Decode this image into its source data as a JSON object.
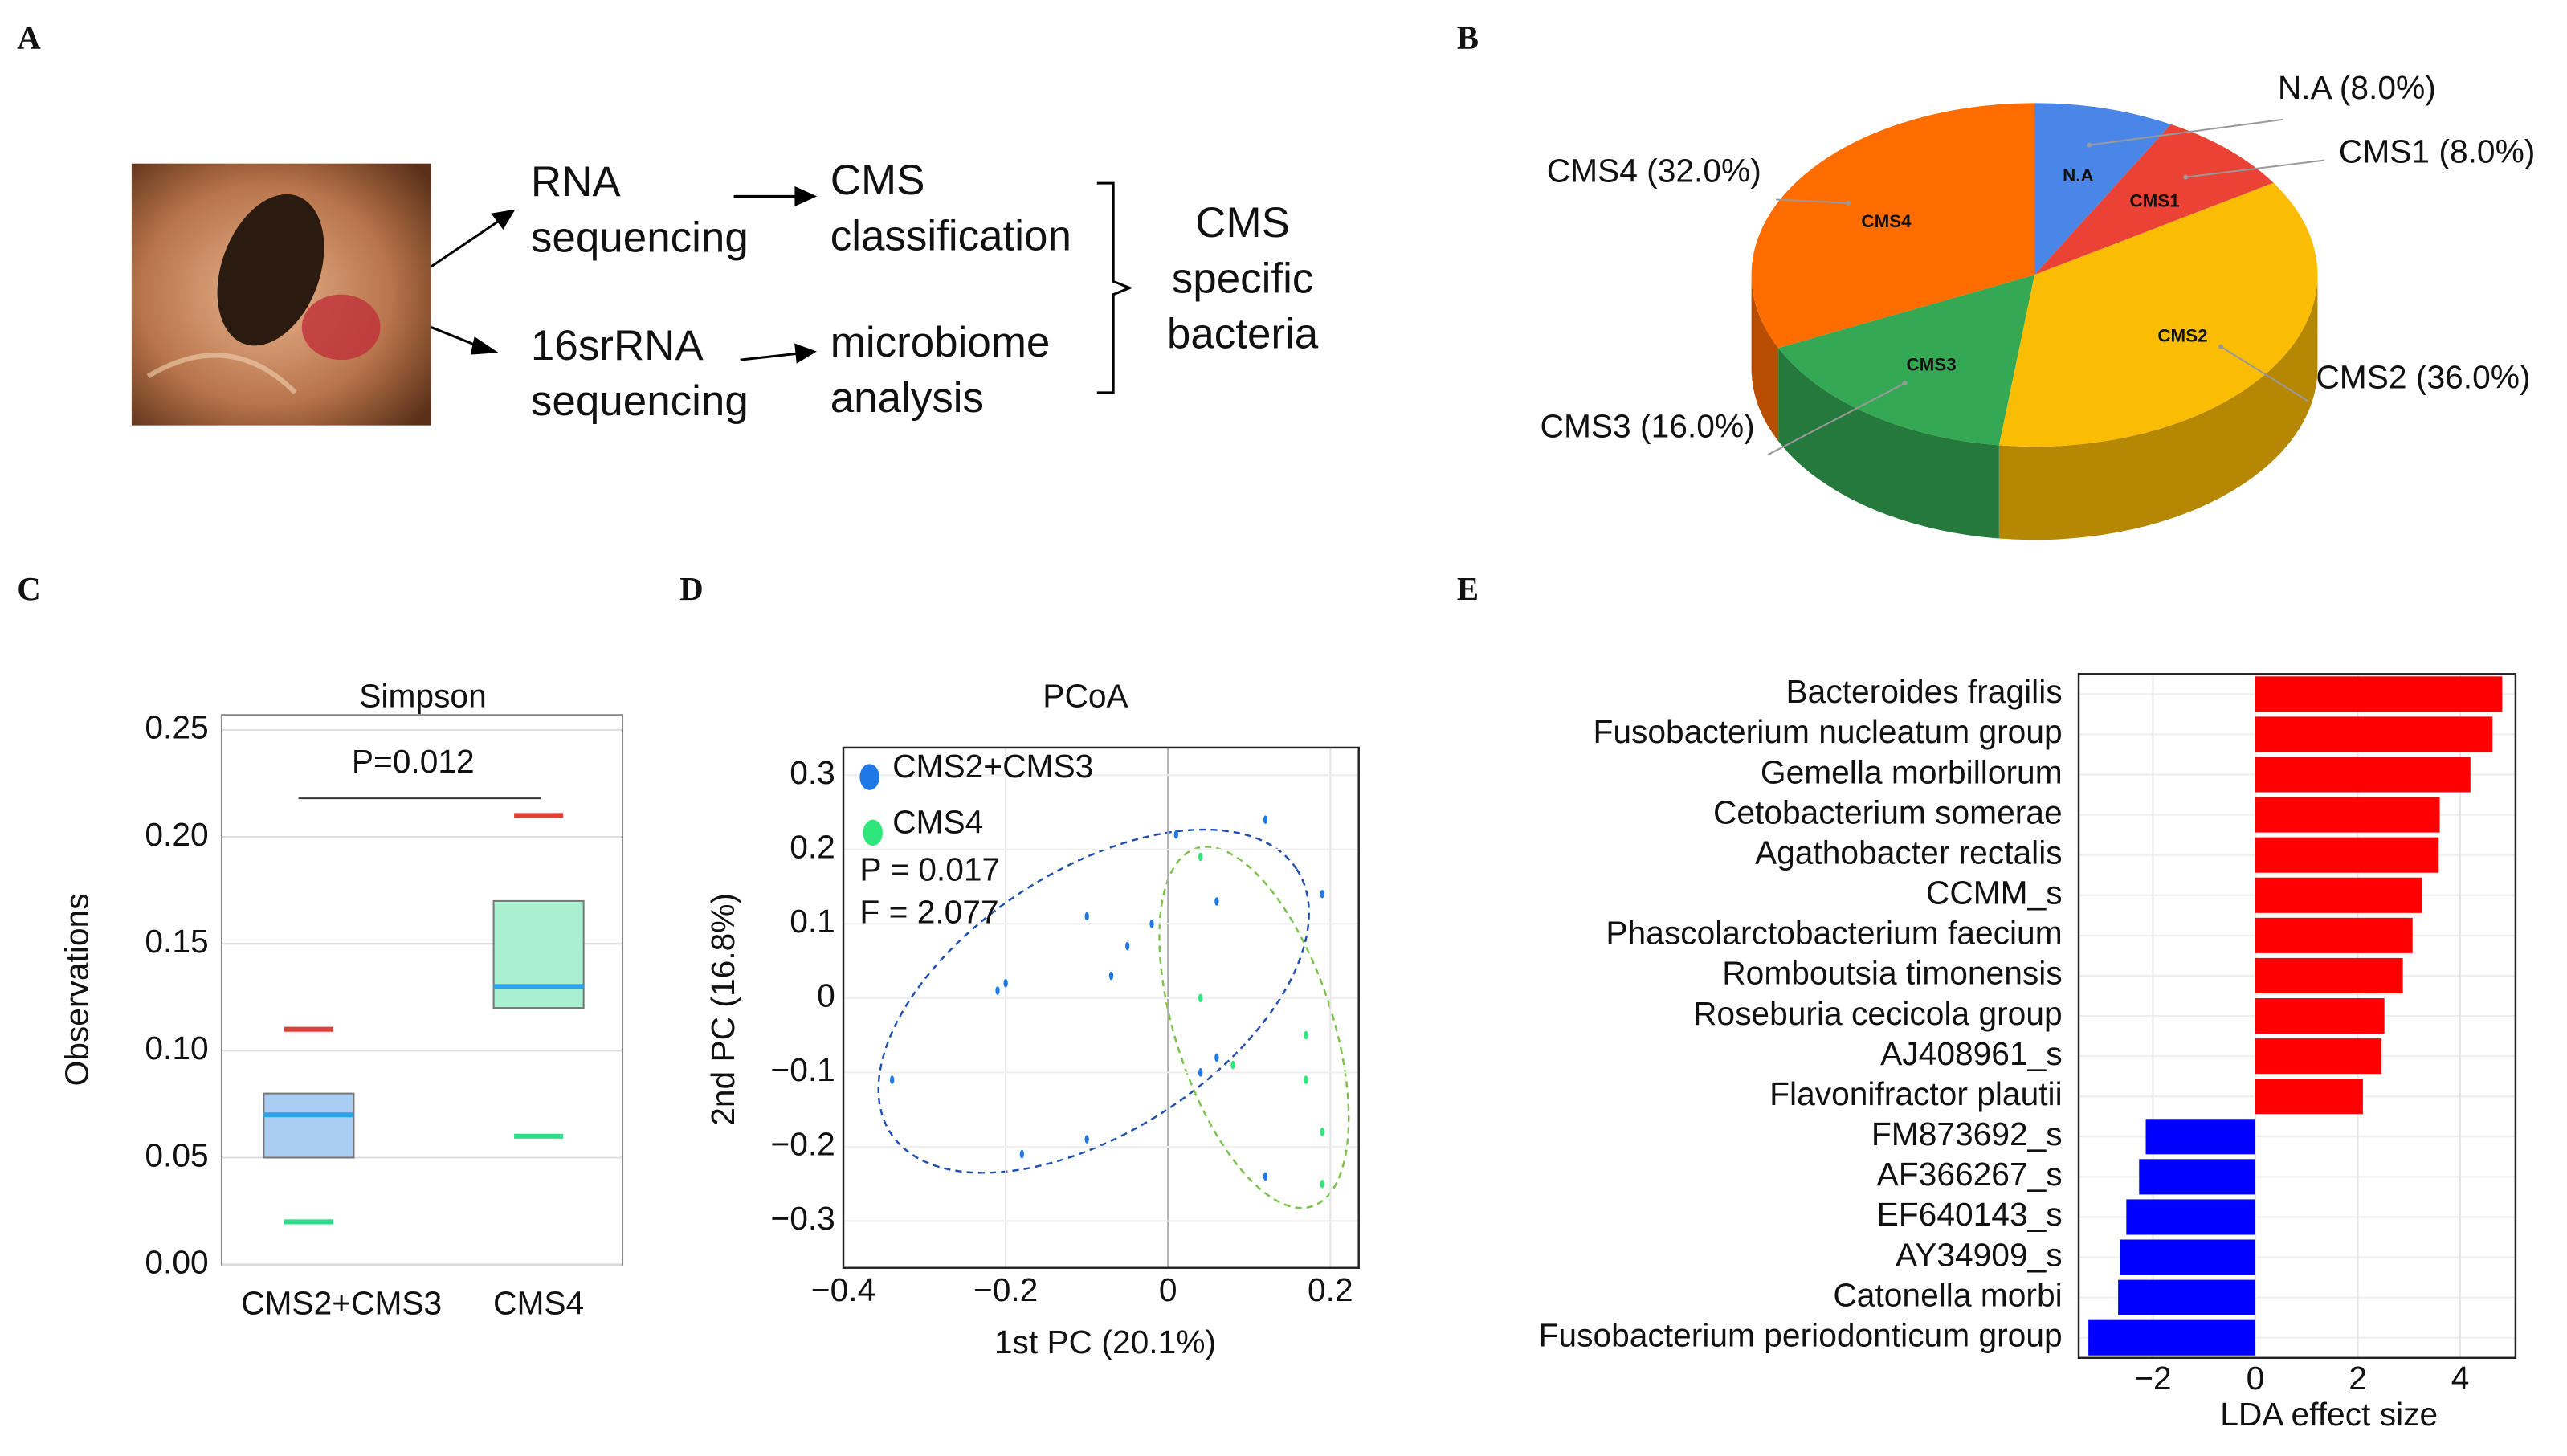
{
  "panels": [
    "A",
    "B",
    "C",
    "D",
    "E"
  ],
  "diagram": {
    "steps": [
      [
        "RNA",
        "sequencing"
      ],
      [
        "16srRNA",
        "sequencing"
      ]
    ],
    "results": [
      [
        "CMS",
        "classification"
      ],
      [
        "microbiome",
        "analysis"
      ]
    ],
    "outcome": [
      "CMS",
      "specific",
      "bacteria"
    ]
  },
  "chart_data": [
    {
      "type": "pie",
      "categories": [
        "N.A",
        "CMS1",
        "CMS2",
        "CMS3",
        "CMS4"
      ],
      "values": [
        8,
        8,
        36,
        16,
        32
      ],
      "value_labels": [
        "N.A (8.0%)",
        "CMS1 (8.0%)",
        "CMS2 (36.0%)",
        "CMS3 (16.0%)",
        "CMS4 (32.0%)"
      ],
      "colors": [
        "#4a86e8",
        "#ea4335",
        "#fbbc04",
        "#34a853",
        "#ff6d01"
      ]
    },
    {
      "type": "box",
      "title": "Simpson",
      "y_label": "Observations",
      "categories": [
        "CMS2+CMS3",
        "CMS4"
      ],
      "boxes": [
        {
          "min": 0.02,
          "q1": 0.05,
          "median": 0.07,
          "q3": 0.08,
          "max": 0.11
        },
        {
          "min": 0.06,
          "q1": 0.12,
          "median": 0.13,
          "q3": 0.17,
          "max": 0.21
        }
      ],
      "box_colors": [
        "#aacdf4",
        "#a8f0d0"
      ],
      "median_color": "#2ba4ea",
      "max_color": "#e0403a",
      "min_color": "#2fdc8a",
      "annotation": "P=0.012",
      "ylim": [
        0,
        0.257
      ],
      "yticks": [
        {
          "value": 0,
          "label": "0.00"
        },
        {
          "value": 0.05,
          "label": "0.05"
        },
        {
          "value": 0.1,
          "label": "0.10"
        },
        {
          "value": 0.15,
          "label": "0.15"
        },
        {
          "value": 0.2,
          "label": "0.20"
        },
        {
          "value": 0.25,
          "label": "0.25"
        }
      ],
      "grid": true
    },
    {
      "type": "scatter",
      "title": "PCoA",
      "x_label": "1st PC (20.1%)",
      "y_label": "2nd PC (16.8%)",
      "series": [
        {
          "name": "CMS2+CMS3",
          "color": "#1f78e6",
          "x": [
            0.12,
            0.01,
            0.19,
            0.06,
            -0.1,
            -0.02,
            -0.05,
            -0.07,
            -0.2,
            -0.21,
            0.04,
            0.06,
            -0.34,
            -0.1,
            -0.18,
            0.12
          ],
          "values": [
            0.24,
            0.22,
            0.14,
            0.13,
            0.11,
            0.1,
            0.07,
            0.03,
            0.02,
            0.01,
            -0.1,
            -0.08,
            -0.11,
            -0.19,
            -0.21,
            -0.24
          ]
        },
        {
          "name": "CMS4",
          "color": "#2ee67a",
          "x": [
            0.04,
            0.04,
            0.17,
            0.08,
            0.17,
            0.19,
            0.19
          ],
          "values": [
            0.19,
            0.0,
            -0.05,
            -0.09,
            -0.11,
            -0.18,
            -0.25
          ]
        }
      ],
      "annotations": [
        "P = 0.017",
        "F = 2.077"
      ],
      "xlim": [
        -0.4,
        0.235
      ],
      "ylim": [
        -0.363,
        0.337
      ],
      "xticks": [
        {
          "value": -0.4,
          "label": "−0.4"
        },
        {
          "value": -0.2,
          "label": "−0.2"
        },
        0,
        0.2
      ],
      "yticks": [
        0.3,
        0.2,
        0.1,
        0,
        {
          "value": -0.1,
          "label": "−0.1"
        },
        {
          "value": -0.2,
          "label": "−0.2"
        },
        {
          "value": -0.3,
          "label": "−0.3"
        }
      ],
      "grid": true
    },
    {
      "type": "bar",
      "orientation": "horizontal",
      "x_label": "LDA effect size",
      "categories": [
        "Bacteroides fragilis",
        "Fusobacterium nucleatum group",
        "Gemella morbillorum",
        "Cetobacterium somerae",
        "Agathobacter rectalis",
        "CCMM_s",
        "Phascolarctobacterium faecium",
        "Romboutsia timonensis",
        "Roseburia cecicola group",
        "AJ408961_s",
        "Flavonifractor plautii",
        "FM873692_s",
        "AF366267_s",
        "EF640143_s",
        "AY34909_s",
        "Catonella morbi",
        "Fusobacterium periodonticum group"
      ],
      "values": [
        4.82,
        4.63,
        4.2,
        3.6,
        3.58,
        3.26,
        3.07,
        2.88,
        2.52,
        2.46,
        2.1,
        -2.14,
        -2.27,
        -2.52,
        -2.65,
        -2.68,
        -3.26
      ],
      "positive_color": "#ff0000",
      "negative_color": "#0000ff",
      "xlim": [
        -3.45,
        5.08
      ],
      "xticks": [
        {
          "value": -2,
          "label": "−2"
        },
        0,
        2,
        4
      ],
      "grid": true
    }
  ]
}
